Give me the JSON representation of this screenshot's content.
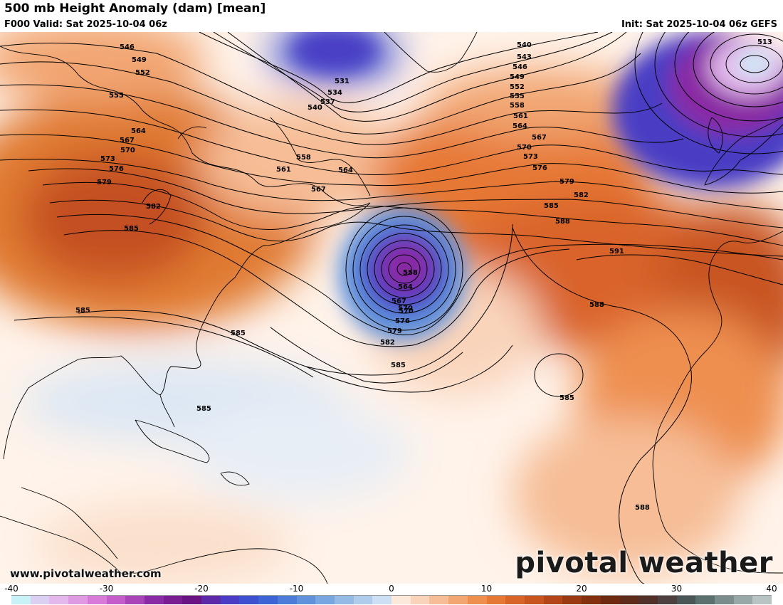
{
  "header": {
    "title": "500 mb Height Anomaly (dam) [mean]",
    "valid": "F000 Valid: Sat 2025-10-04 06z",
    "init": "Init: Sat 2025-10-04 06z GEFS"
  },
  "footer": {
    "website": "www.pivotalweather.com",
    "brand": "pivotal weather"
  },
  "colorbar": {
    "ticks": [
      "-40",
      "-30",
      "-20",
      "-10",
      "0",
      "10",
      "20",
      "30",
      "40"
    ],
    "colors": [
      "#c8f2f8",
      "#dcd0f2",
      "#e4b8ec",
      "#e09ae4",
      "#d87ad8",
      "#c45ccc",
      "#a844b8",
      "#8a2aa4",
      "#7a1c92",
      "#6a1484",
      "#5c2aa8",
      "#4a3cc4",
      "#3c50d0",
      "#3c64d4",
      "#4a7cd8",
      "#6092dc",
      "#78a6e0",
      "#94bae6",
      "#b0ccec",
      "#cddff2",
      "#fde9dc",
      "#f9d4bb",
      "#f6bd96",
      "#f2a672",
      "#ee8f50",
      "#e67836",
      "#d9642a",
      "#c85420",
      "#b24618",
      "#9a3a12",
      "#82300e",
      "#6e2a10",
      "#5e2a1a",
      "#52302a",
      "#4e4040",
      "#4a5656",
      "#5c7070",
      "#7a8c8c",
      "#98a8a8",
      "#b8c4c4"
    ]
  },
  "contour_labels": [
    "513",
    "531",
    "534",
    "537",
    "540",
    "540",
    "543",
    "546",
    "546",
    "549",
    "549",
    "552",
    "552",
    "555",
    "555",
    "558",
    "558",
    "561",
    "561",
    "564",
    "564",
    "564",
    "567",
    "567",
    "567",
    "570",
    "570",
    "570",
    "573",
    "573",
    "576",
    "576",
    "576",
    "579",
    "579",
    "579",
    "582",
    "582",
    "582",
    "585",
    "585",
    "585",
    "585",
    "585",
    "585",
    "585",
    "588",
    "588",
    "588",
    "591",
    "558",
    "564",
    "567",
    "570"
  ],
  "icons": {
    "brand_logo": "gear-icon"
  }
}
